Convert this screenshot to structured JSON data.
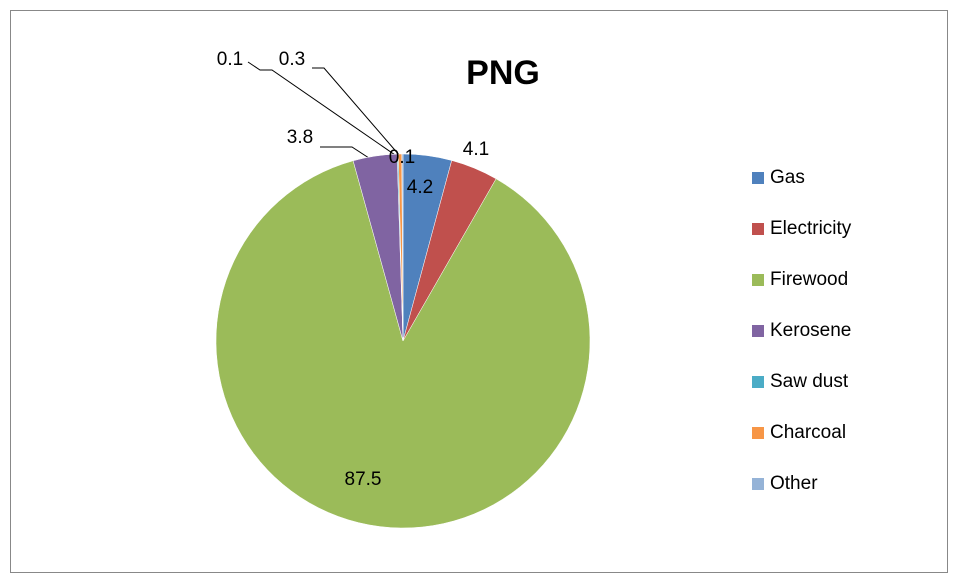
{
  "chart_data": {
    "type": "pie",
    "title": "PNG",
    "categories": [
      "Gas",
      "Electricity",
      "Firewood",
      "Kerosene",
      "Saw dust",
      "Charcoal",
      "Other"
    ],
    "values": [
      4.2,
      4.1,
      87.5,
      3.8,
      0.1,
      0.3,
      0.1
    ],
    "colors": [
      "#4f81bd",
      "#c0504d",
      "#9bbb59",
      "#8064a2",
      "#4bacc6",
      "#f79646",
      "#95b3d7"
    ],
    "legend": "right"
  }
}
